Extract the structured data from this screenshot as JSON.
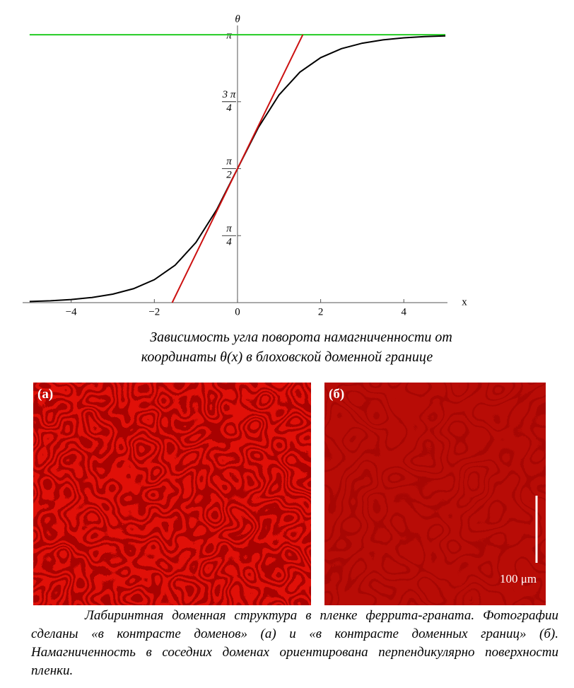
{
  "chart_data": {
    "type": "line",
    "xlabel": "x",
    "ylabel": "θ",
    "xlim": [
      -5.1,
      5.05
    ],
    "ylim": [
      0,
      3.25
    ],
    "xticks": [
      {
        "value": -4,
        "label": "−4"
      },
      {
        "value": -2,
        "label": "−2"
      },
      0,
      2,
      4
    ],
    "yticks": [
      {
        "value": 0.7854,
        "label": "π/4"
      },
      {
        "value": 1.5708,
        "label": "π/2"
      },
      {
        "value": 2.3562,
        "label": "3 π/4"
      },
      {
        "value": 3.1416,
        "label": "π"
      }
    ],
    "series": [
      {
        "color": "#000000",
        "x": [
          -5,
          -4.5,
          -4,
          -3.5,
          -3,
          -2.5,
          -2,
          -1.5,
          -1,
          -0.5,
          0,
          0.5,
          1,
          1.5,
          2,
          2.5,
          3,
          3.5,
          4,
          4.5,
          5
        ],
        "values": [
          0.0135,
          0.0222,
          0.0366,
          0.0604,
          0.0995,
          0.1638,
          0.269,
          0.4391,
          0.7053,
          1.0898,
          1.5708,
          2.0518,
          2.4363,
          2.7025,
          2.8726,
          2.9778,
          3.0421,
          3.0812,
          3.105,
          3.1194,
          3.1281
        ]
      },
      {
        "color": "#cc1111",
        "x": [
          -1.5708,
          1.5708
        ],
        "values": [
          0,
          3.1416
        ]
      },
      {
        "color": "#22cc22",
        "x": [
          -5,
          5
        ],
        "values": [
          3.1416,
          3.1416
        ]
      }
    ],
    "caption": [
      "Зависимость угла поворота намагниченности от",
      "координаты θ(x) в блоховской доменной границе"
    ]
  },
  "figure2": {
    "panels": [
      {
        "label": "(а)"
      },
      {
        "label": "(б)",
        "scale_bar": "100 μm"
      }
    ],
    "caption": "Лабиринтная доменная структура в пленке феррита-граната. Фотографии сделаны «в контрасте доменов» (а) и «в контрасте доменных границ» (б). Намагниченность в соседних доменах ориентирована перпендикулярно поверхности пленки."
  }
}
